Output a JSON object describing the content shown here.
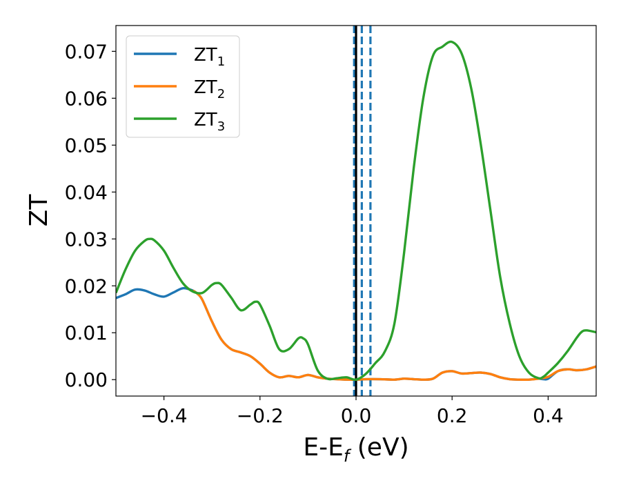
{
  "chart_data": {
    "type": "line",
    "title": "",
    "xlabel_main": "E-E",
    "xlabel_sub": "f",
    "xlabel_tail": " (eV)",
    "ylabel": "ZT",
    "xlim": [
      -0.5,
      0.5
    ],
    "ylim": [
      -0.0035,
      0.0755
    ],
    "xticks": [
      -0.4,
      -0.2,
      0.0,
      0.2,
      0.4
    ],
    "xtick_labels": [
      "−0.4",
      "−0.2",
      "0.0",
      "0.2",
      "0.4"
    ],
    "yticks": [
      0.0,
      0.01,
      0.02,
      0.03,
      0.04,
      0.05,
      0.06,
      0.07
    ],
    "ytick_labels": [
      "0.00",
      "0.01",
      "0.02",
      "0.03",
      "0.04",
      "0.05",
      "0.06",
      "0.07"
    ],
    "grid": false,
    "legend_position": "top-left",
    "series": [
      {
        "base": "ZT",
        "sub": "1",
        "color": "#1f77b4",
        "x": [
          -0.5,
          -0.48,
          -0.46,
          -0.44,
          -0.42,
          -0.4,
          -0.38,
          -0.36,
          -0.34,
          -0.33,
          -0.32,
          -0.3,
          -0.28,
          -0.26,
          -0.24,
          -0.22,
          -0.2,
          -0.18,
          -0.16,
          -0.14,
          -0.12,
          -0.1,
          -0.08,
          -0.06,
          -0.04,
          -0.02,
          0.0,
          0.02,
          0.05,
          0.08,
          0.1,
          0.12,
          0.14,
          0.16,
          0.18,
          0.2,
          0.22,
          0.24,
          0.26,
          0.28,
          0.3,
          0.32,
          0.34,
          0.36,
          0.38,
          0.39,
          0.4,
          0.42,
          0.44,
          0.46,
          0.48,
          0.5
        ],
        "y": [
          0.0174,
          0.0182,
          0.0192,
          0.019,
          0.0182,
          0.0177,
          0.0186,
          0.0195,
          0.019,
          0.0183,
          0.017,
          0.0124,
          0.0085,
          0.0065,
          0.0058,
          0.005,
          0.0034,
          0.0015,
          0.0005,
          0.0008,
          0.0005,
          0.001,
          0.0005,
          0.0002,
          0.0001,
          0.0,
          0.0,
          0.0001,
          0.0001,
          0.0,
          0.0002,
          0.0001,
          0.0,
          0.0002,
          0.0015,
          0.0018,
          0.0013,
          0.0014,
          0.0015,
          0.0012,
          0.0005,
          0.0001,
          0.0,
          0.0,
          0.0002,
          0.0001,
          0.0002,
          0.0018,
          0.0022,
          0.002,
          0.0022,
          0.0028
        ]
      },
      {
        "base": "ZT",
        "sub": "2",
        "color": "#ff7f0e",
        "x": [
          -0.34,
          -0.33,
          -0.32,
          -0.3,
          -0.28,
          -0.26,
          -0.24,
          -0.22,
          -0.2,
          -0.18,
          -0.16,
          -0.14,
          -0.12,
          -0.1,
          -0.08,
          -0.06,
          -0.04,
          -0.02,
          0.0,
          0.02,
          0.05,
          0.08,
          0.1,
          0.12,
          0.14,
          0.16,
          0.18,
          0.2,
          0.22,
          0.24,
          0.26,
          0.28,
          0.3,
          0.32,
          0.34,
          0.36,
          0.38,
          0.4,
          0.42,
          0.44,
          0.46,
          0.48,
          0.5
        ],
        "y": [
          0.019,
          0.0183,
          0.017,
          0.0124,
          0.0085,
          0.0065,
          0.0058,
          0.005,
          0.0034,
          0.0015,
          0.0005,
          0.0008,
          0.0005,
          0.001,
          0.0005,
          0.0002,
          0.0001,
          0.0,
          0.0,
          0.0001,
          0.0001,
          0.0,
          0.0002,
          0.0001,
          0.0,
          0.0002,
          0.0015,
          0.0018,
          0.0013,
          0.0014,
          0.0015,
          0.0012,
          0.0005,
          0.0001,
          0.0,
          0.0,
          0.0002,
          0.0006,
          0.0018,
          0.0022,
          0.002,
          0.0022,
          0.0028
        ]
      },
      {
        "base": "ZT",
        "sub": "3",
        "color": "#2ca02c",
        "x": [
          -0.5,
          -0.48,
          -0.46,
          -0.44,
          -0.43,
          -0.42,
          -0.4,
          -0.38,
          -0.36,
          -0.34,
          -0.32,
          -0.3,
          -0.29,
          -0.28,
          -0.26,
          -0.24,
          -0.22,
          -0.21,
          -0.2,
          -0.18,
          -0.16,
          -0.14,
          -0.12,
          -0.11,
          -0.1,
          -0.08,
          -0.06,
          -0.04,
          -0.02,
          0.0,
          0.02,
          0.04,
          0.06,
          0.08,
          0.1,
          0.12,
          0.14,
          0.16,
          0.18,
          0.2,
          0.22,
          0.24,
          0.26,
          0.28,
          0.3,
          0.32,
          0.34,
          0.36,
          0.38,
          0.39,
          0.4,
          0.42,
          0.44,
          0.46,
          0.47,
          0.48,
          0.5
        ],
        "y": [
          0.0185,
          0.0235,
          0.0275,
          0.0296,
          0.03,
          0.0297,
          0.0275,
          0.0238,
          0.0205,
          0.0188,
          0.0185,
          0.0202,
          0.0206,
          0.0202,
          0.0175,
          0.0148,
          0.016,
          0.0166,
          0.016,
          0.0115,
          0.0065,
          0.0065,
          0.0088,
          0.0088,
          0.0075,
          0.002,
          0.0002,
          0.0003,
          0.0005,
          0.0,
          0.0012,
          0.0035,
          0.006,
          0.012,
          0.027,
          0.045,
          0.06,
          0.069,
          0.071,
          0.072,
          0.0695,
          0.062,
          0.05,
          0.036,
          0.022,
          0.012,
          0.005,
          0.0015,
          0.0003,
          0.0006,
          0.0015,
          0.0035,
          0.006,
          0.009,
          0.0102,
          0.0105,
          0.0101
        ]
      }
    ],
    "vertical_lines": [
      {
        "x": -0.004,
        "color": "#1f77b4",
        "style": "dashed"
      },
      {
        "x": 0.012,
        "color": "#1f77b4",
        "style": "dashed"
      },
      {
        "x": 0.03,
        "color": "#1f77b4",
        "style": "dashed"
      },
      {
        "x": 0.0,
        "color": "#000000",
        "style": "solid"
      }
    ]
  }
}
